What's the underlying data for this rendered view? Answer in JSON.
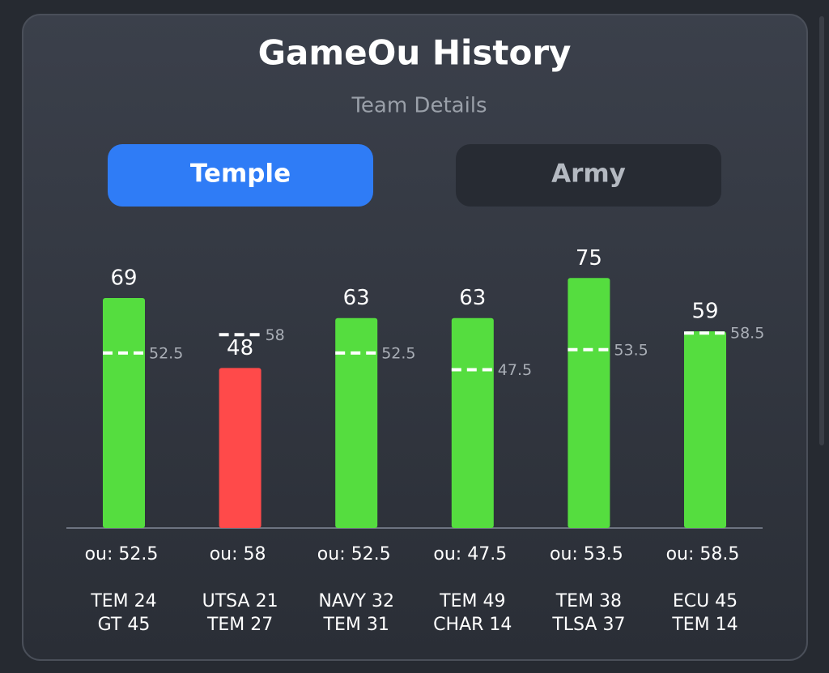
{
  "tabs": [
    "Temple",
    "Army"
  ],
  "chart_data": {
    "type": "bar",
    "title": "GameOu History",
    "subtitle": "Team Details",
    "categories": [
      [
        "TEM 24",
        "GT 45"
      ],
      [
        "UTSA 21",
        "TEM 27"
      ],
      [
        "NAVY 32",
        "TEM 31"
      ],
      [
        "TEM 49",
        "CHAR 14"
      ],
      [
        "TEM 38",
        "TLSA 37"
      ],
      [
        "ECU 45",
        "TEM 14"
      ]
    ],
    "values": [
      69,
      48,
      63,
      63,
      75,
      59
    ],
    "ou": [
      52.5,
      58,
      52.5,
      47.5,
      53.5,
      58.5
    ],
    "ou_labels": [
      "ou: 52.5",
      "ou: 58",
      "ou: 52.5",
      "ou: 47.5",
      "ou: 53.5",
      "ou: 58.5"
    ],
    "over_color": "#55dd3f",
    "under_color": "#ff4a4a"
  }
}
